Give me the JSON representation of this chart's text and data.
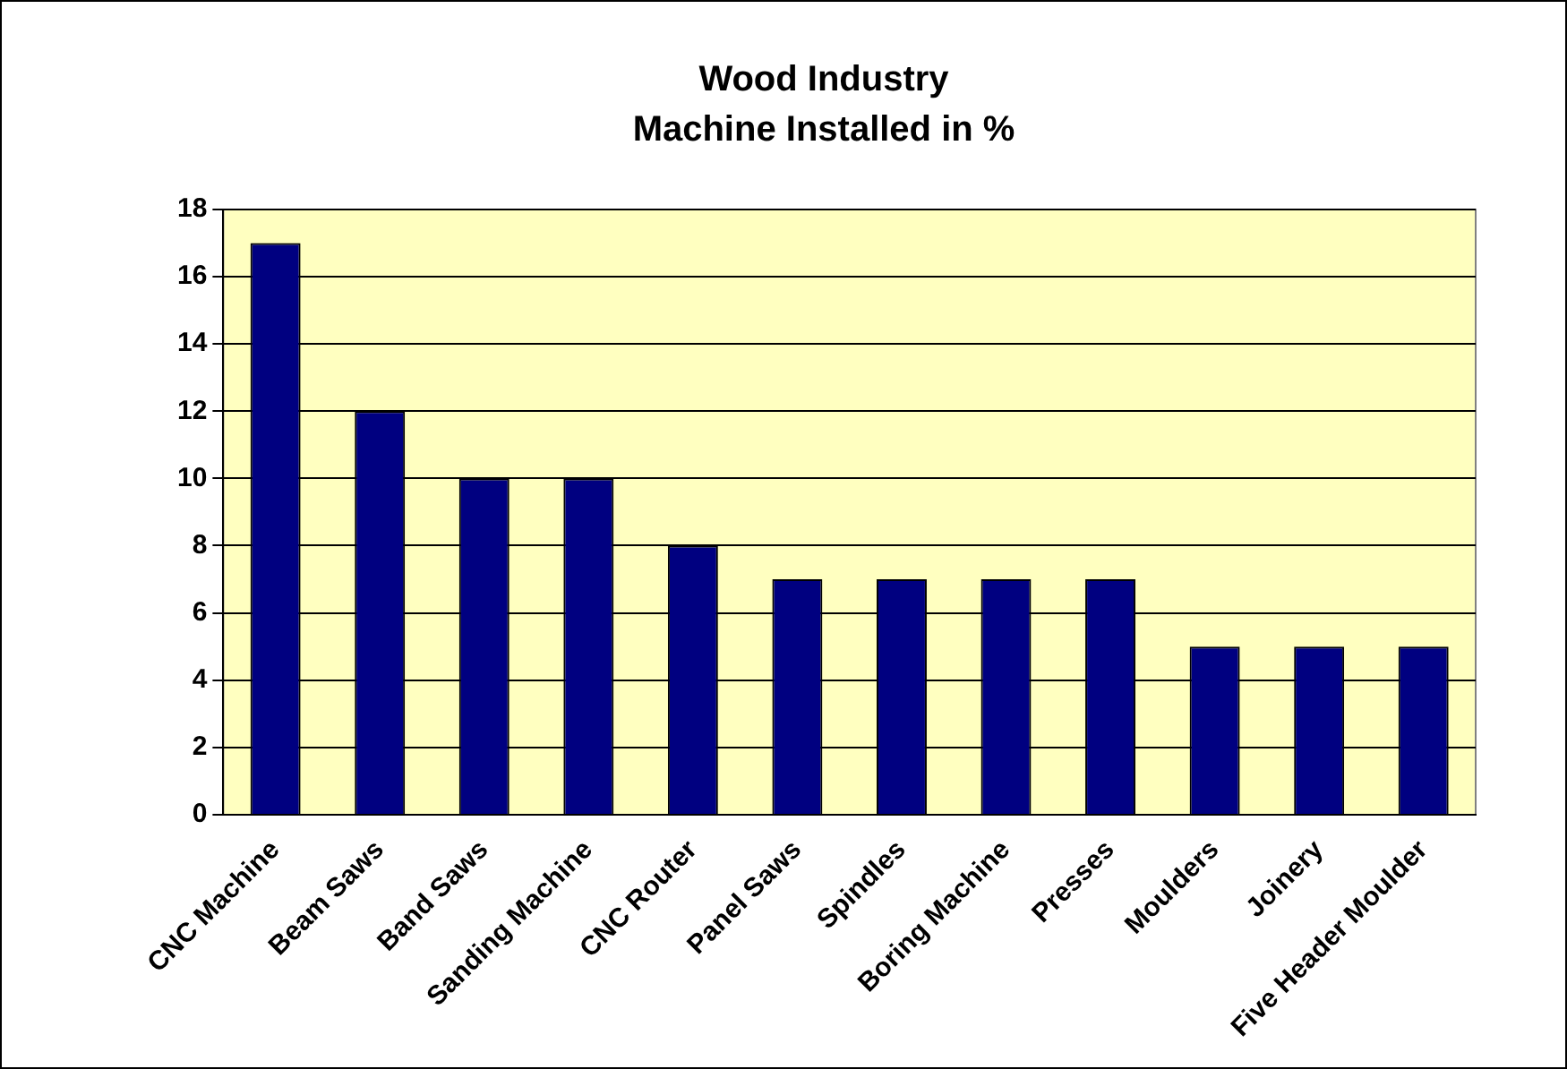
{
  "chart_data": {
    "type": "bar",
    "title": "Wood Industry\nMachine Installed in %",
    "categories": [
      "CNC Machine",
      "Beam Saws",
      "Band Saws",
      "Sanding Machine",
      "CNC Router",
      "Panel Saws",
      "Spindles",
      "Boring Machine",
      "Presses",
      "Moulders",
      "Joinery",
      "Five Header Moulder"
    ],
    "values": [
      17,
      12,
      10,
      10,
      8,
      7,
      7,
      7,
      7,
      5,
      5,
      5
    ],
    "color": "#000080",
    "ylim": [
      0,
      18
    ],
    "yticks": [
      0,
      2,
      4,
      6,
      8,
      10,
      12,
      14,
      16,
      18
    ],
    "grid": "y",
    "legend": false
  }
}
